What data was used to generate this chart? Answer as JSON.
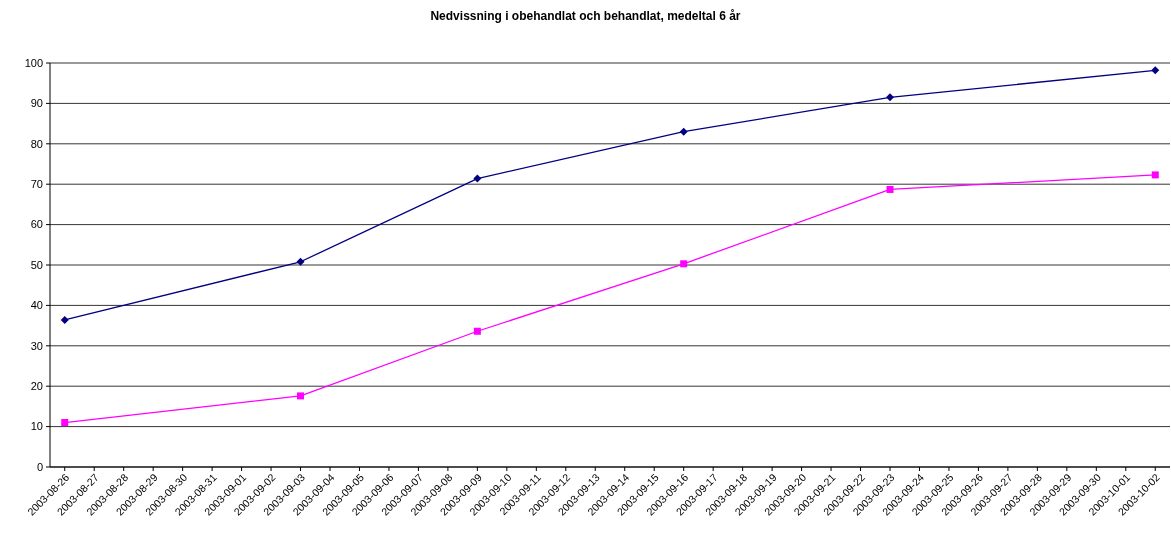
{
  "chart_data": {
    "type": "line",
    "title": "Nedvissning i obehandlat och behandlat, medeltal 6 år",
    "x": [
      "2003-08-26",
      "2003-09-03",
      "2003-09-09",
      "2003-09-16",
      "2003-09-23",
      "2003-10-02"
    ],
    "series": [
      {
        "color": "#000080",
        "marker": "diamond",
        "values": [
          36.4,
          50.8,
          71.4,
          83.0,
          91.5,
          98.2
        ]
      },
      {
        "color": "#ff00ff",
        "marker": "square",
        "values": [
          11.0,
          17.6,
          33.6,
          50.3,
          68.7,
          72.3
        ]
      }
    ],
    "xlim": [
      "2003-08-25T12:00",
      "2003-10-02T12:00"
    ],
    "xticks": [
      "2003-08-26",
      "2003-08-27",
      "2003-08-28",
      "2003-08-29",
      "2003-08-30",
      "2003-08-31",
      "2003-09-01",
      "2003-09-02",
      "2003-09-03",
      "2003-09-04",
      "2003-09-05",
      "2003-09-06",
      "2003-09-07",
      "2003-09-08",
      "2003-09-09",
      "2003-09-10",
      "2003-09-11",
      "2003-09-12",
      "2003-09-13",
      "2003-09-14",
      "2003-09-15",
      "2003-09-16",
      "2003-09-17",
      "2003-09-18",
      "2003-09-19",
      "2003-09-20",
      "2003-09-21",
      "2003-09-22",
      "2003-09-23",
      "2003-09-24",
      "2003-09-25",
      "2003-09-26",
      "2003-09-27",
      "2003-09-28",
      "2003-09-29",
      "2003-09-30",
      "2003-10-01",
      "2003-10-02"
    ],
    "ylim": [
      0,
      100
    ],
    "yticks": [
      0,
      10,
      20,
      30,
      40,
      50,
      60,
      70,
      80,
      90,
      100
    ],
    "grid": "y"
  }
}
